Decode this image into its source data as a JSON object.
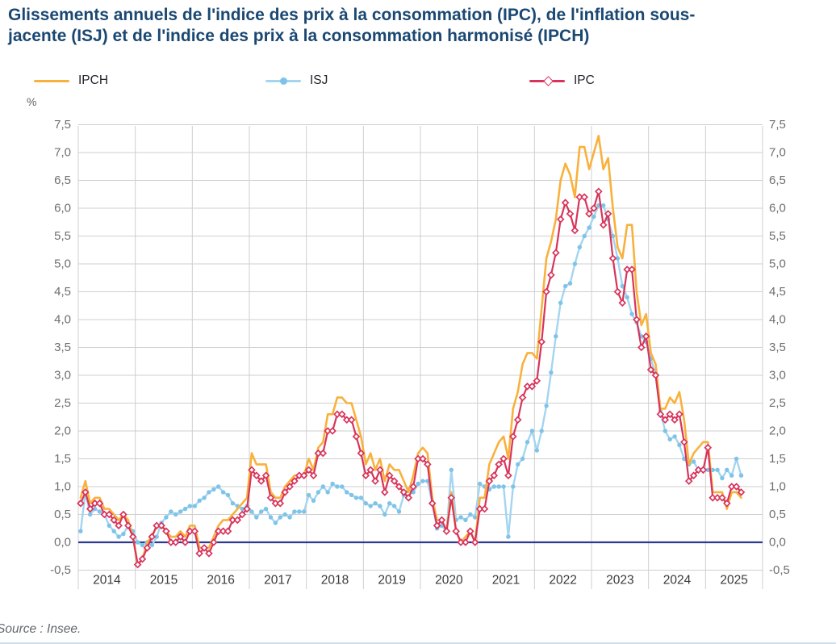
{
  "header": {
    "title_line1": "Glissements annuels de l'indice des prix à la consommation (IPC), de l'inflation sous-",
    "title_line2": "jacente (ISJ) et de l'indice des prix à la consommation harmonisé (IPCH)"
  },
  "legend": {
    "items": [
      {
        "id": "ipch",
        "label": "IPCH",
        "color": "#F9B13C",
        "marker": "none"
      },
      {
        "id": "isj",
        "label": "ISJ",
        "color": "#A3D5F0",
        "marker": "circle",
        "marker_color": "#7EC3E8"
      },
      {
        "id": "ipc",
        "label": "IPC",
        "color": "#D8345B",
        "marker": "diamond",
        "marker_color": "#D8345B"
      }
    ]
  },
  "axis": {
    "unit_label": "%",
    "years": [
      "2014",
      "2015",
      "2016",
      "2017",
      "2018",
      "2019",
      "2020",
      "2021",
      "2022",
      "2023",
      "2024",
      "2025"
    ],
    "y_ticks": [
      {
        "v": 7.5,
        "label": "7,5"
      },
      {
        "v": 7.0,
        "label": "7,0"
      },
      {
        "v": 6.5,
        "label": "6,5"
      },
      {
        "v": 6.0,
        "label": "6,0"
      },
      {
        "v": 5.5,
        "label": "5,5"
      },
      {
        "v": 5.0,
        "label": "5,0"
      },
      {
        "v": 4.5,
        "label": "4,5"
      },
      {
        "v": 4.0,
        "label": "4,0"
      },
      {
        "v": 3.5,
        "label": "3,5"
      },
      {
        "v": 3.0,
        "label": "3,0"
      },
      {
        "v": 2.5,
        "label": "2,5"
      },
      {
        "v": 2.0,
        "label": "2,0"
      },
      {
        "v": 1.5,
        "label": "1,5"
      },
      {
        "v": 1.0,
        "label": "1,0"
      },
      {
        "v": 0.5,
        "label": "0,5"
      },
      {
        "v": 0.0,
        "label": "0,0"
      },
      {
        "v": -0.5,
        "label": "-0,5"
      }
    ]
  },
  "source": "Source : Insee.",
  "chart_data": {
    "type": "line",
    "title": "Glissements annuels de l'indice des prix à la consommation (IPC), de l'inflation sous-jacente (ISJ) et de l'indice des prix à la consommation harmonisé (IPCH)",
    "ylabel": "%",
    "x_frequency": "monthly",
    "x_start": "2014-01",
    "x_end": "2025-08",
    "x_axis_years": [
      "2014",
      "2015",
      "2016",
      "2017",
      "2018",
      "2019",
      "2020",
      "2021",
      "2022",
      "2023",
      "2024",
      "2025"
    ],
    "ylim": [
      -0.5,
      7.5
    ],
    "y_tick_step": 0.5,
    "grid": true,
    "legend_position": "top",
    "zero_line_color": "#2B3990",
    "grid_color": "#CFCFCF",
    "series": [
      {
        "name": "ISJ",
        "color": "#A3D5F0",
        "marker": "circle",
        "marker_color": "#7EC3E8",
        "line_width": 2.4,
        "values": [
          0.2,
          0.9,
          0.5,
          0.6,
          0.55,
          0.5,
          0.3,
          0.2,
          0.1,
          0.15,
          0.3,
          0.2,
          0.0,
          -0.05,
          0.0,
          -0.05,
          0.1,
          0.35,
          0.45,
          0.55,
          0.5,
          0.55,
          0.6,
          0.65,
          0.65,
          0.75,
          0.8,
          0.9,
          0.95,
          1.0,
          0.9,
          0.85,
          0.7,
          0.65,
          0.6,
          0.65,
          0.55,
          0.45,
          0.55,
          0.6,
          0.45,
          0.35,
          0.45,
          0.5,
          0.45,
          0.55,
          0.55,
          0.55,
          0.85,
          0.75,
          0.9,
          1.0,
          0.9,
          1.05,
          1.0,
          1.0,
          0.9,
          0.85,
          0.8,
          0.8,
          0.7,
          0.65,
          0.7,
          0.65,
          0.5,
          0.7,
          0.65,
          0.55,
          0.85,
          0.95,
          0.9,
          1.05,
          1.1,
          1.1,
          0.7,
          0.25,
          0.3,
          0.2,
          1.3,
          0.4,
          0.45,
          0.4,
          0.5,
          0.45,
          1.05,
          1.0,
          0.95,
          1.0,
          1.0,
          1.0,
          0.1,
          1.0,
          1.4,
          1.5,
          1.8,
          2.0,
          1.65,
          2.0,
          2.45,
          3.05,
          3.7,
          4.3,
          4.6,
          4.65,
          5.0,
          5.3,
          5.5,
          5.65,
          5.85,
          6.05,
          6.05,
          5.8,
          5.5,
          5.1,
          4.6,
          4.4,
          4.1,
          3.95,
          3.7,
          3.6,
          3.3,
          3.0,
          2.35,
          2.0,
          1.85,
          1.9,
          1.75,
          1.5,
          1.4,
          1.45,
          1.3,
          1.3,
          1.3,
          1.3,
          1.3,
          1.15,
          1.3,
          1.2,
          1.5,
          1.2
        ]
      },
      {
        "name": "IPCH",
        "color": "#F9B13C",
        "marker": "none",
        "line_width": 2.6,
        "values": [
          0.8,
          1.1,
          0.7,
          0.8,
          0.8,
          0.6,
          0.6,
          0.5,
          0.4,
          0.5,
          0.4,
          0.1,
          -0.4,
          -0.3,
          0.0,
          0.1,
          0.3,
          0.3,
          0.2,
          0.1,
          0.1,
          0.2,
          0.1,
          0.3,
          0.3,
          -0.1,
          -0.1,
          -0.1,
          0.1,
          0.3,
          0.4,
          0.4,
          0.5,
          0.6,
          0.7,
          0.8,
          1.6,
          1.4,
          1.4,
          1.4,
          0.9,
          0.8,
          0.8,
          1.0,
          1.1,
          1.2,
          1.2,
          1.2,
          1.5,
          1.3,
          1.7,
          1.8,
          2.3,
          2.3,
          2.6,
          2.6,
          2.5,
          2.5,
          2.2,
          1.9,
          1.4,
          1.6,
          1.3,
          1.5,
          1.1,
          1.4,
          1.3,
          1.3,
          1.1,
          0.9,
          1.2,
          1.6,
          1.7,
          1.6,
          0.8,
          0.4,
          0.4,
          0.2,
          0.9,
          0.2,
          0.0,
          0.1,
          0.2,
          0.0,
          0.8,
          0.8,
          1.4,
          1.6,
          1.8,
          1.9,
          1.5,
          2.4,
          2.7,
          3.2,
          3.4,
          3.4,
          3.3,
          4.2,
          5.1,
          5.4,
          5.8,
          6.5,
          6.8,
          6.6,
          6.2,
          7.1,
          7.1,
          6.7,
          7.0,
          7.3,
          6.7,
          6.9,
          6.0,
          5.3,
          5.1,
          5.7,
          5.7,
          4.5,
          3.9,
          4.1,
          3.4,
          3.2,
          2.4,
          2.4,
          2.6,
          2.5,
          2.7,
          2.2,
          1.4,
          1.6,
          1.7,
          1.8,
          1.8,
          0.9,
          0.9,
          0.9,
          0.6,
          0.9,
          0.9,
          0.8
        ]
      },
      {
        "name": "IPC",
        "color": "#D8345B",
        "marker": "diamond",
        "marker_color": "#D8345B",
        "line_width": 2.2,
        "values": [
          0.7,
          0.9,
          0.6,
          0.7,
          0.7,
          0.5,
          0.5,
          0.4,
          0.3,
          0.5,
          0.3,
          0.1,
          -0.4,
          -0.3,
          -0.1,
          0.1,
          0.3,
          0.3,
          0.2,
          0.0,
          0.0,
          0.1,
          0.0,
          0.2,
          0.2,
          -0.2,
          -0.1,
          -0.2,
          0.0,
          0.2,
          0.2,
          0.2,
          0.4,
          0.4,
          0.5,
          0.6,
          1.3,
          1.2,
          1.1,
          1.2,
          0.8,
          0.7,
          0.7,
          0.9,
          1.0,
          1.1,
          1.2,
          1.2,
          1.3,
          1.2,
          1.6,
          1.6,
          2.0,
          2.0,
          2.3,
          2.3,
          2.2,
          2.2,
          1.9,
          1.6,
          1.2,
          1.3,
          1.1,
          1.3,
          0.9,
          1.2,
          1.1,
          1.0,
          0.9,
          0.8,
          1.0,
          1.5,
          1.5,
          1.4,
          0.7,
          0.3,
          0.4,
          0.2,
          0.8,
          0.2,
          0.0,
          0.0,
          0.2,
          0.0,
          0.6,
          0.6,
          1.1,
          1.2,
          1.4,
          1.5,
          1.2,
          1.9,
          2.2,
          2.6,
          2.8,
          2.8,
          2.9,
          3.6,
          4.5,
          4.8,
          5.2,
          5.8,
          6.1,
          5.9,
          5.6,
          6.2,
          6.2,
          5.9,
          6.0,
          6.3,
          5.7,
          5.9,
          5.1,
          4.5,
          4.3,
          4.9,
          4.9,
          4.0,
          3.5,
          3.7,
          3.1,
          3.0,
          2.3,
          2.2,
          2.3,
          2.2,
          2.3,
          1.8,
          1.1,
          1.2,
          1.3,
          1.3,
          1.7,
          0.8,
          0.8,
          0.8,
          0.7,
          1.0,
          1.0,
          0.9
        ]
      }
    ]
  }
}
